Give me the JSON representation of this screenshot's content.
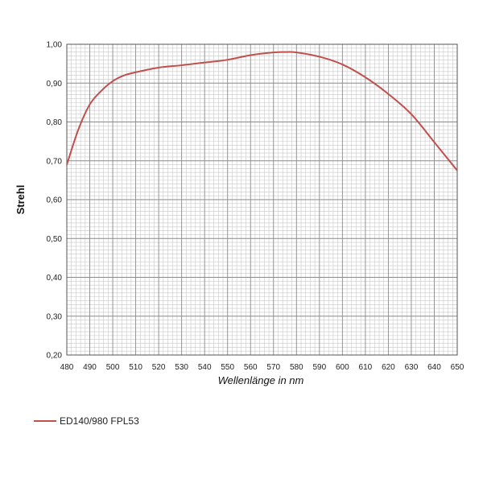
{
  "chart_data": {
    "type": "line",
    "title": "",
    "xlabel": "Wellenlänge in nm",
    "ylabel": "Strehl",
    "xlim": [
      480,
      650
    ],
    "ylim": [
      0.2,
      1.0
    ],
    "x_ticks": [
      "480",
      "490",
      "500",
      "510",
      "520",
      "530",
      "540",
      "550",
      "560",
      "570",
      "580",
      "590",
      "600",
      "610",
      "620",
      "630",
      "640",
      "650"
    ],
    "y_ticks": [
      "0,20",
      "0,30",
      "0,40",
      "0,50",
      "0,60",
      "0,70",
      "0,80",
      "0,90",
      "1,00"
    ],
    "grid": true,
    "legend_position": "bottom-left",
    "series": [
      {
        "name": "ED140/980  FPL53",
        "color": "#c0504d",
        "x": [
          480,
          485,
          490,
          495,
          500,
          505,
          510,
          520,
          530,
          540,
          550,
          560,
          570,
          575,
          580,
          590,
          600,
          610,
          620,
          630,
          640,
          650
        ],
        "y": [
          0.69,
          0.78,
          0.845,
          0.88,
          0.905,
          0.92,
          0.928,
          0.94,
          0.946,
          0.953,
          0.96,
          0.972,
          0.979,
          0.98,
          0.979,
          0.968,
          0.948,
          0.915,
          0.872,
          0.82,
          0.748,
          0.675
        ]
      }
    ]
  }
}
